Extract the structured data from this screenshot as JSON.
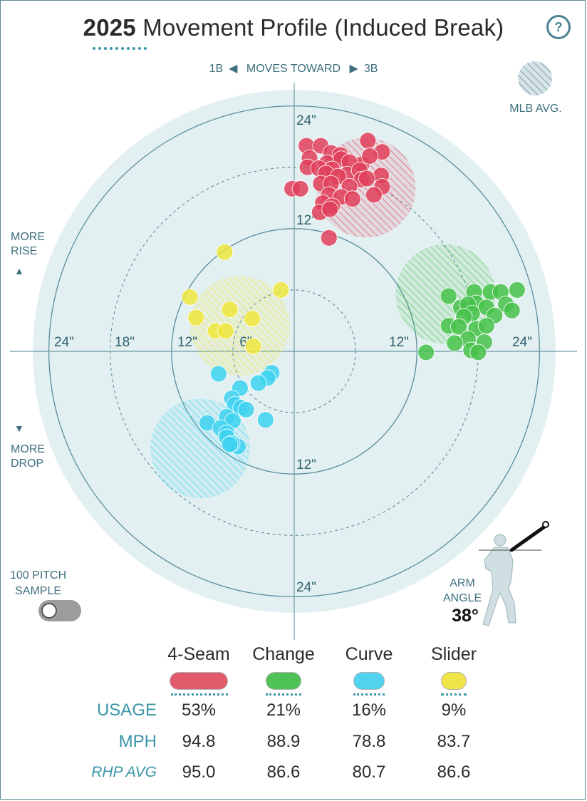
{
  "header": {
    "year": "2025",
    "title": "Movement Profile (Induced Break)",
    "help_label": "?"
  },
  "direction": {
    "left_label": "1B",
    "middle_label": "MOVES TOWARD",
    "right_label": "3B"
  },
  "mlb_avg_label": "MLB AVG.",
  "more_rise": [
    "MORE",
    "RISE"
  ],
  "more_drop": [
    "MORE",
    "DROP"
  ],
  "pitch_sample": [
    "100 PITCH",
    "SAMPLE"
  ],
  "arm_angle": {
    "label": [
      "ARM",
      "ANGLE"
    ],
    "value": "38°"
  },
  "colors": {
    "panel": "#e3f0f2",
    "ring": "#5b8d9c",
    "axis": "#6f9aa7",
    "text": "#3d6f7d",
    "accent": "#3a96a8"
  },
  "chart_data": {
    "type": "scatter",
    "x_label_left": "1B",
    "x_label_right": "3B",
    "units": "inches",
    "xlim": [
      -24,
      24
    ],
    "ylim": [
      -24,
      24
    ],
    "axis_tick_labels": {
      "top": "24\"",
      "upper": "12\"",
      "lower": "12\"",
      "bottom": "24\"",
      "left": [
        "24\"",
        "18\"",
        "12\"",
        "6\""
      ],
      "right": [
        "12\"",
        "24\""
      ]
    },
    "series": [
      {
        "name": "4-Seam",
        "color": "#e0405a",
        "avg_color": "#e0405a",
        "mlb_avg": {
          "x": 7,
          "y": 16
        },
        "points": [
          [
            1.2,
            20.1
          ],
          [
            2.6,
            20.1
          ],
          [
            3.6,
            19.4
          ],
          [
            1.5,
            18.9
          ],
          [
            4.5,
            19.2
          ],
          [
            7.2,
            20.6
          ],
          [
            8.6,
            19.5
          ],
          [
            3.2,
            18.4
          ],
          [
            4.6,
            18.8
          ],
          [
            6.6,
            18.3
          ],
          [
            5.4,
            18.5
          ],
          [
            7.4,
            19.1
          ],
          [
            1.3,
            18.0
          ],
          [
            2.4,
            17.9
          ],
          [
            3.7,
            17.8
          ],
          [
            5.2,
            17.3
          ],
          [
            6.4,
            17.7
          ],
          [
            8.5,
            17.2
          ],
          [
            3.1,
            17.4
          ],
          [
            4.3,
            17.1
          ],
          [
            6.6,
            16.8
          ],
          [
            7.1,
            16.9
          ],
          [
            2.6,
            16.4
          ],
          [
            3.6,
            16.4
          ],
          [
            5.4,
            16.1
          ],
          [
            8.6,
            16.1
          ],
          [
            -0.2,
            15.9
          ],
          [
            0.6,
            15.9
          ],
          [
            3.4,
            15.3
          ],
          [
            4.6,
            15.1
          ],
          [
            5.7,
            14.9
          ],
          [
            7.8,
            15.3
          ],
          [
            2.8,
            14.5
          ],
          [
            3.7,
            14.2
          ],
          [
            2.5,
            13.6
          ],
          [
            3.5,
            13.9
          ],
          [
            3.4,
            11.1
          ]
        ]
      },
      {
        "name": "Change",
        "color": "#46c24a",
        "avg_color": "#46c24a",
        "mlb_avg": {
          "x": 14.8,
          "y": 5.6
        },
        "points": [
          [
            15.1,
            5.4
          ],
          [
            17.6,
            5.8
          ],
          [
            17.8,
            4.7
          ],
          [
            19.2,
            5.8
          ],
          [
            20.2,
            5.8
          ],
          [
            21.8,
            6.0
          ],
          [
            20.7,
            4.6
          ],
          [
            16.3,
            4.3
          ],
          [
            17.0,
            4.6
          ],
          [
            18.8,
            4.3
          ],
          [
            17.4,
            3.7
          ],
          [
            19.6,
            3.5
          ],
          [
            21.3,
            4.0
          ],
          [
            16.6,
            3.4
          ],
          [
            15.1,
            2.5
          ],
          [
            16.1,
            2.4
          ],
          [
            17.8,
            2.2
          ],
          [
            18.8,
            2.5
          ],
          [
            17.0,
            1.2
          ],
          [
            15.7,
            0.8
          ],
          [
            18.6,
            0.9
          ],
          [
            17.3,
            0.1
          ],
          [
            18.0,
            -0.1
          ],
          [
            12.9,
            -0.1
          ]
        ]
      },
      {
        "name": "Curve",
        "color": "#3dd2f0",
        "avg_color": "#3dd2f0",
        "mlb_avg": {
          "x": -9.2,
          "y": -9.5
        },
        "points": [
          [
            -2.2,
            -2.1
          ],
          [
            -2.6,
            -2.6
          ],
          [
            -3.5,
            -3.1
          ],
          [
            -7.4,
            -2.2
          ],
          [
            -5.3,
            -3.6
          ],
          [
            -6.1,
            -4.6
          ],
          [
            -5.8,
            -5.2
          ],
          [
            -5.2,
            -5.5
          ],
          [
            -4.7,
            -5.7
          ],
          [
            -2.8,
            -6.7
          ],
          [
            -6.6,
            -6.4
          ],
          [
            -6.0,
            -6.8
          ],
          [
            -8.5,
            -7.0
          ],
          [
            -7.2,
            -7.5
          ],
          [
            -6.6,
            -8.0
          ],
          [
            -6.6,
            -8.4
          ],
          [
            -5.5,
            -9.3
          ],
          [
            -6.1,
            -9.0
          ],
          [
            -6.3,
            -9.1
          ]
        ]
      },
      {
        "name": "Slider",
        "color": "#efe63c",
        "avg_color": "#efe63c",
        "mlb_avg": {
          "x": -5.3,
          "y": 2.5
        },
        "points": [
          [
            -6.8,
            9.7
          ],
          [
            -10.2,
            5.3
          ],
          [
            -1.3,
            6.0
          ],
          [
            -6.3,
            4.1
          ],
          [
            -9.6,
            3.3
          ],
          [
            -4.1,
            3.2
          ],
          [
            -7.7,
            2.0
          ],
          [
            -6.7,
            2.0
          ],
          [
            -4.0,
            0.5
          ]
        ]
      }
    ]
  },
  "table": {
    "pitches": [
      "4-Seam",
      "Change",
      "Curve",
      "Slider"
    ],
    "pill_colors": [
      "#e05a6b",
      "#4fc257",
      "#4fd3ef",
      "#f0e548"
    ],
    "rows": [
      {
        "label": "USAGE",
        "values": [
          "53%",
          "21%",
          "16%",
          "9%"
        ]
      },
      {
        "label": "MPH",
        "values": [
          "94.8",
          "88.9",
          "78.8",
          "83.7"
        ]
      },
      {
        "label": "RHP AVG",
        "values": [
          "95.0",
          "86.6",
          "80.7",
          "86.6"
        ]
      }
    ]
  }
}
